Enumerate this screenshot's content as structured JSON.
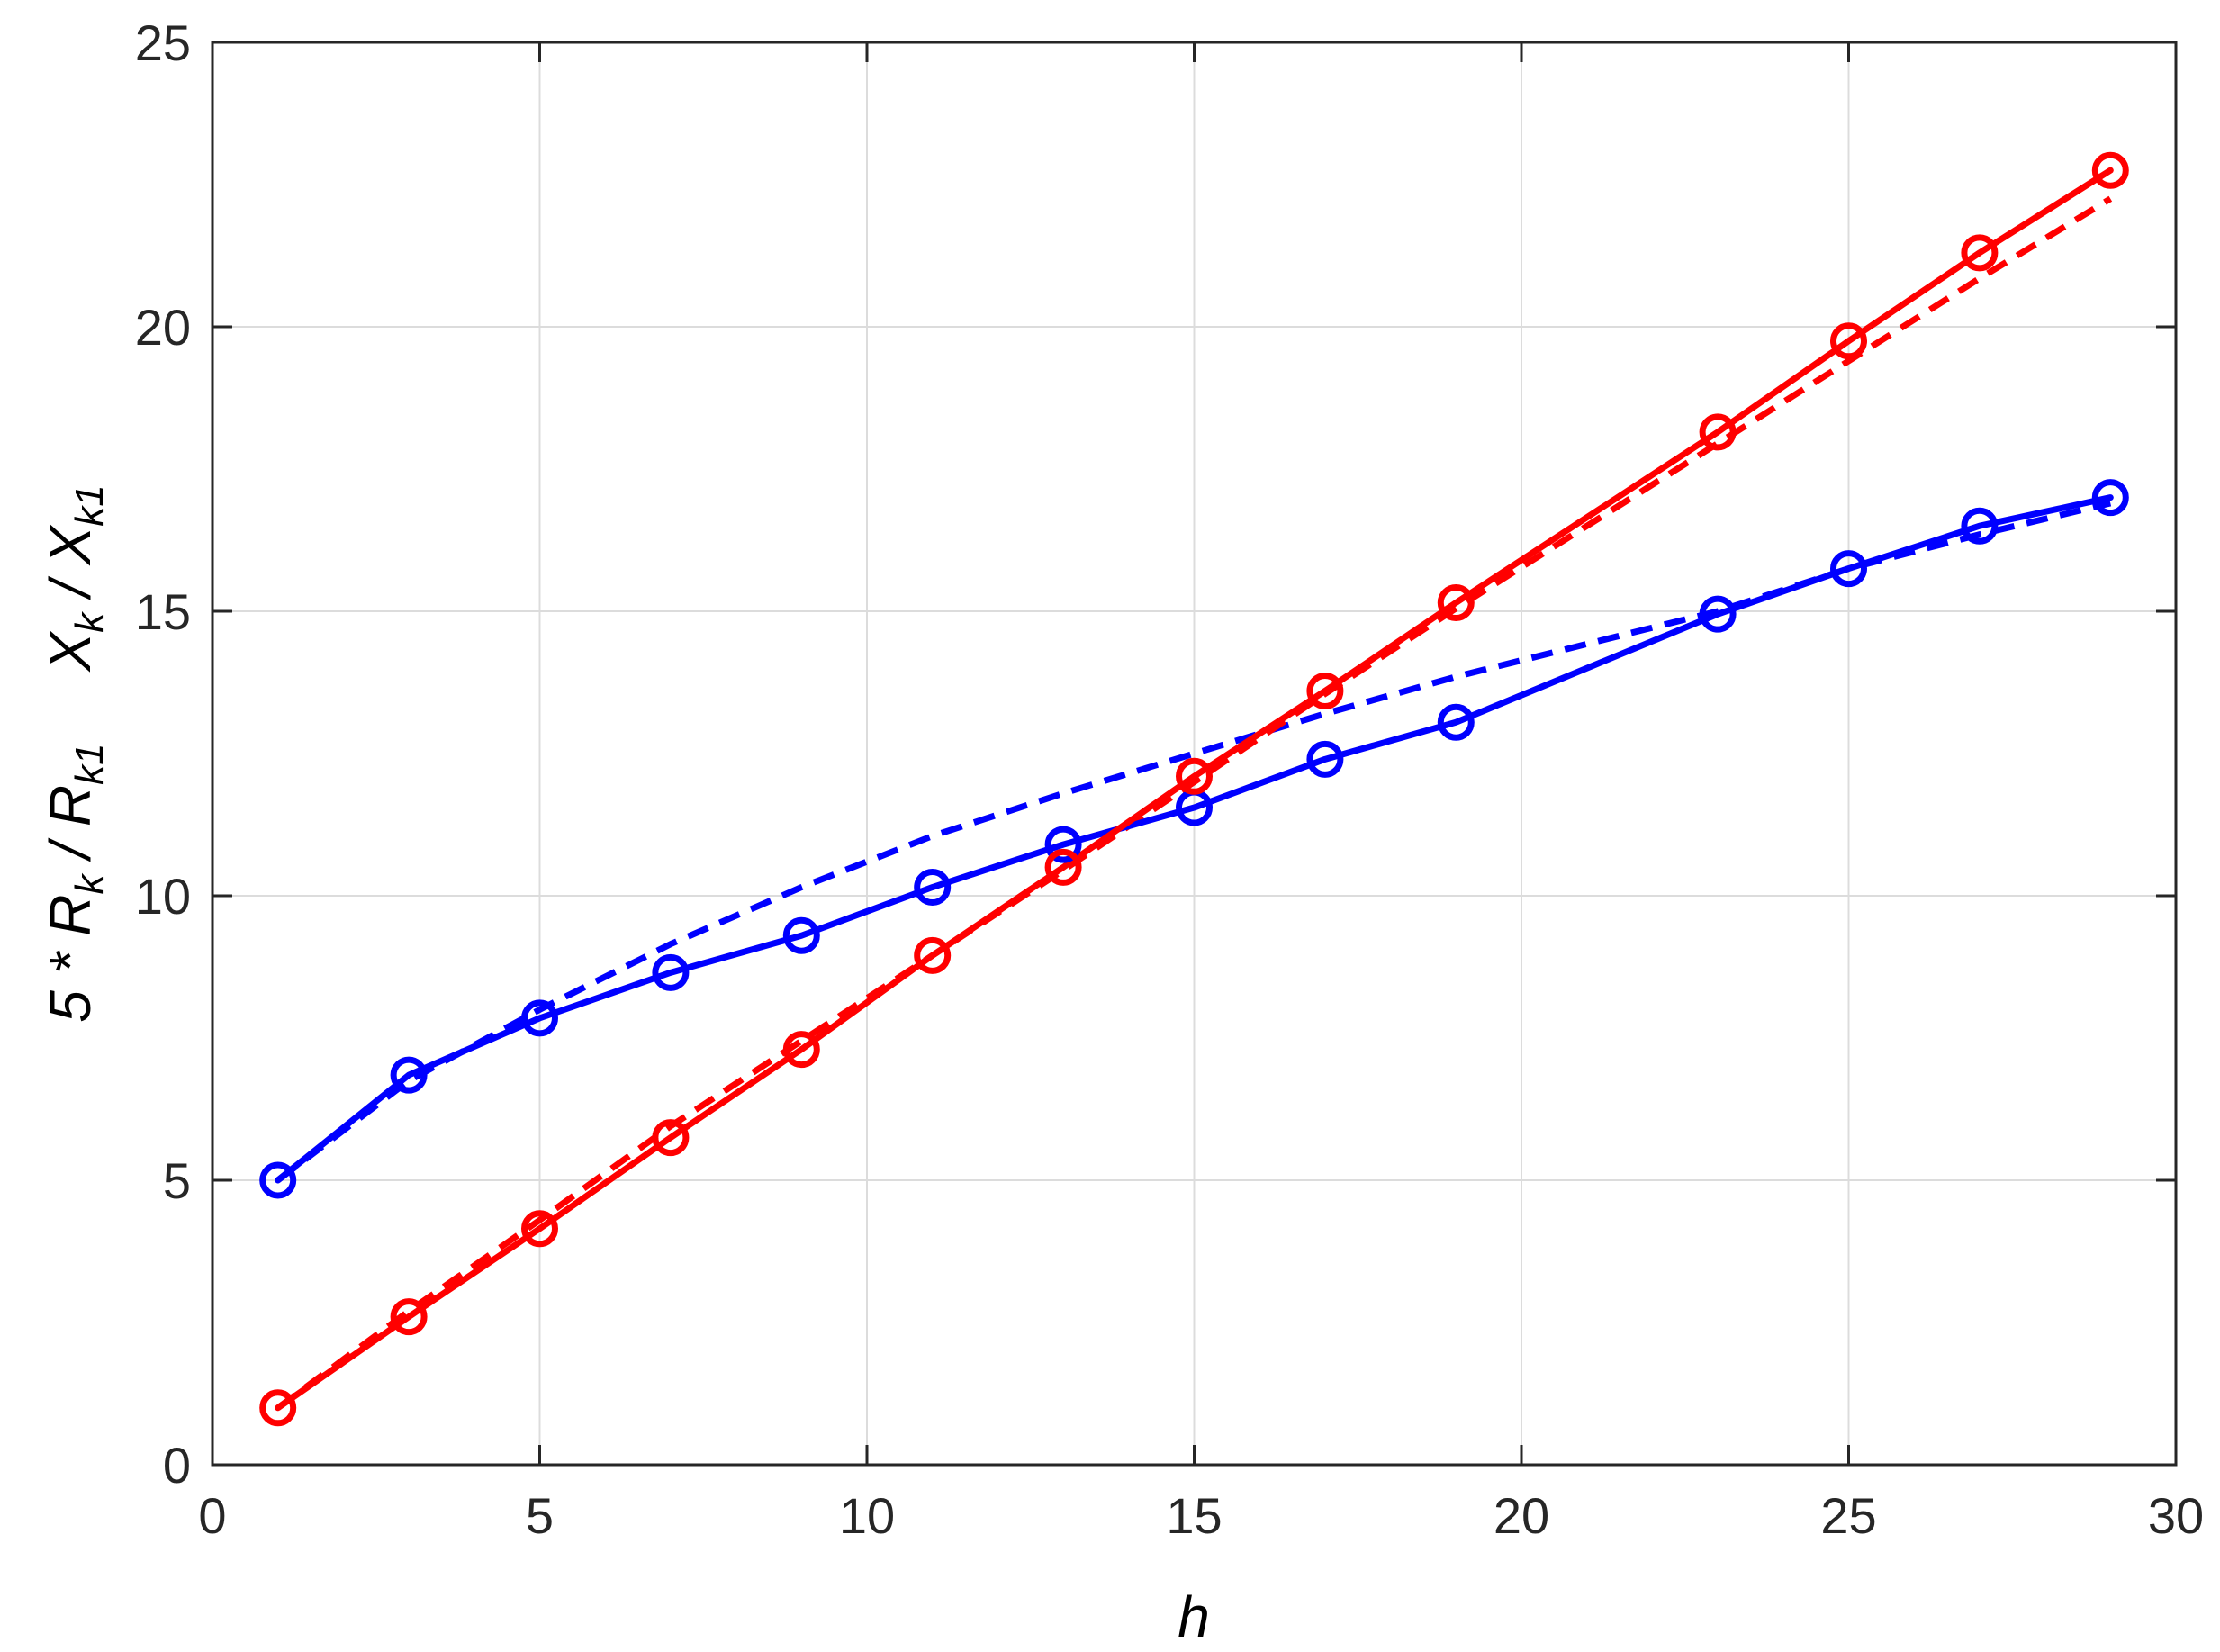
{
  "chart_data": {
    "type": "line",
    "xlabel": "h",
    "ylabel_prefix": "5 * ",
    "ylabel_parts": [
      {
        "base": "R",
        "sub": "k"
      },
      {
        "base": "R",
        "sub": "k1"
      },
      {
        "base": "X",
        "sub": "k"
      },
      {
        "base": "X",
        "sub": "k1"
      }
    ],
    "ylabel_sep": " / ",
    "xlim": [
      0,
      30
    ],
    "ylim": [
      0,
      25
    ],
    "xticks": [
      "0",
      "5",
      "10",
      "15",
      "20",
      "25",
      "30"
    ],
    "yticks": [
      "0",
      "5",
      "10",
      "15",
      "20",
      "25"
    ],
    "grid": true,
    "legend": null,
    "series": [
      {
        "color": "#0000ff",
        "style": "solid",
        "marker": "circle",
        "x": [
          1,
          3,
          5,
          7,
          9,
          11,
          13,
          15,
          17,
          19,
          23,
          25,
          27,
          29
        ],
        "y": [
          5.0,
          6.85,
          7.85,
          8.65,
          9.3,
          10.15,
          10.9,
          11.55,
          12.4,
          13.05,
          14.95,
          15.75,
          16.5,
          17.0
        ]
      },
      {
        "color": "#0000ff",
        "style": "dashed",
        "marker": null,
        "x": [
          1,
          3,
          5,
          7,
          9,
          11,
          13,
          15,
          17,
          19,
          23,
          25,
          27,
          29
        ],
        "y": [
          5.0,
          6.75,
          8.0,
          9.15,
          10.15,
          11.05,
          11.8,
          12.5,
          13.2,
          13.85,
          15.0,
          15.75,
          16.35,
          16.9
        ]
      },
      {
        "color": "#ff0000",
        "style": "solid",
        "marker": "circle",
        "x": [
          1,
          3,
          5,
          7,
          9,
          11,
          13,
          15,
          17,
          19,
          23,
          25,
          27,
          29
        ],
        "y": [
          1.0,
          2.6,
          4.15,
          5.75,
          7.3,
          8.95,
          10.5,
          12.1,
          13.6,
          15.15,
          18.15,
          19.75,
          21.3,
          22.75
        ]
      },
      {
        "color": "#ff0000",
        "style": "dashed",
        "marker": null,
        "x": [
          1,
          3,
          5,
          7,
          9,
          11,
          13,
          15,
          17,
          19,
          23,
          25,
          27,
          29
        ],
        "y": [
          1.0,
          2.7,
          4.3,
          5.95,
          7.45,
          8.95,
          10.45,
          12.0,
          13.55,
          15.05,
          17.95,
          19.4,
          20.85,
          22.25
        ]
      }
    ]
  }
}
